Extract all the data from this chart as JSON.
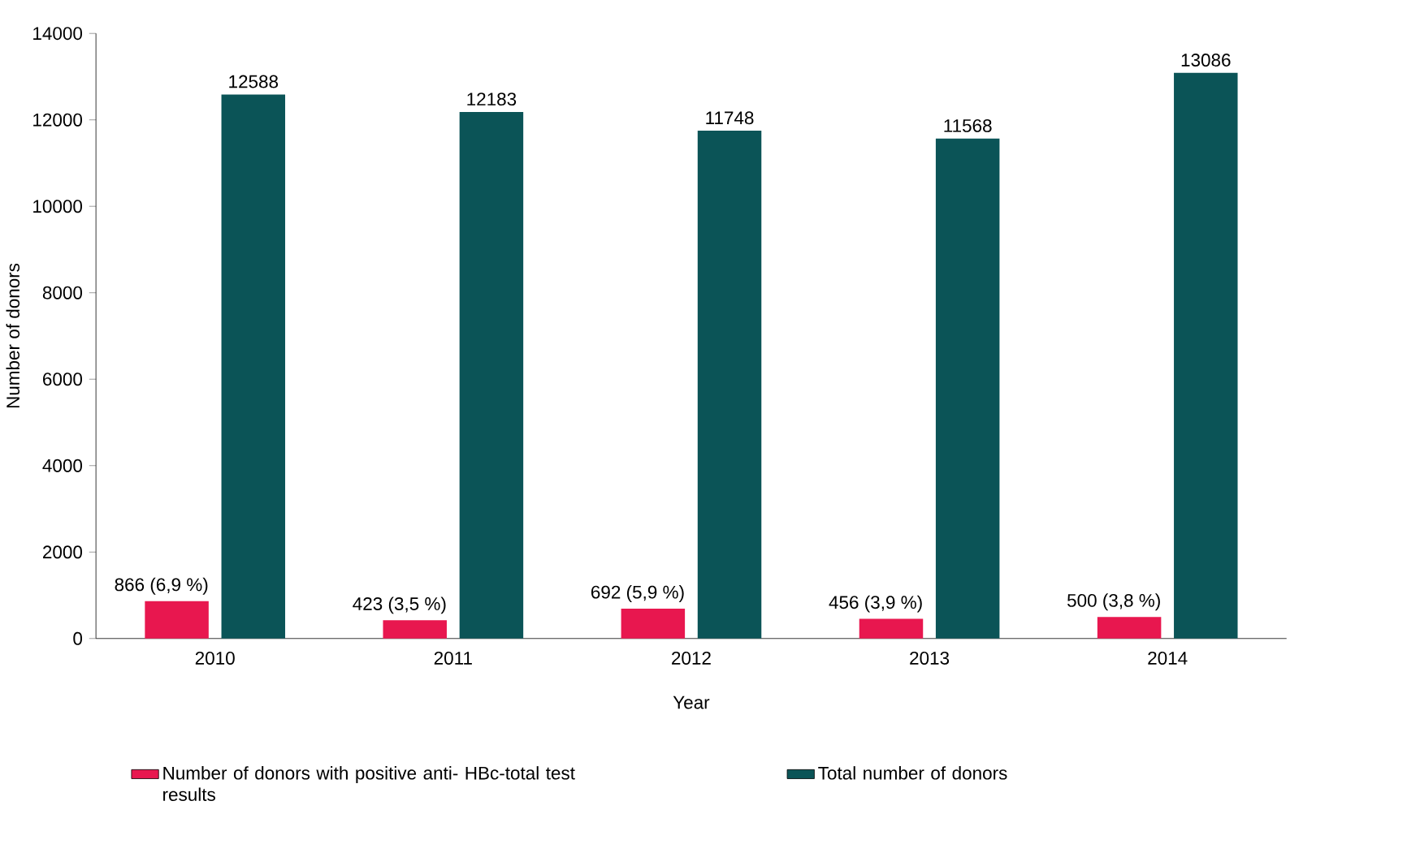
{
  "chart_data": {
    "type": "bar",
    "xlabel": "Year",
    "ylabel": "Number of donors",
    "categories": [
      "2010",
      "2011",
      "2012",
      "2013",
      "2014"
    ],
    "series": [
      {
        "name": "Number of donors with positive anti- HBc-total test results",
        "color": "#e8174f",
        "values": [
          866,
          423,
          692,
          456,
          500
        ],
        "value_labels": [
          "866 (6,9 %)",
          "423 (3,5 %)",
          "692 (5,9 %)",
          "456 (3,9 %)",
          "500 (3,8 %)"
        ]
      },
      {
        "name": "Total number of donors",
        "color": "#0b5457",
        "values": [
          12588,
          12183,
          11748,
          11568,
          13086
        ]
      }
    ],
    "ylim": [
      0,
      14000
    ],
    "yticks": [
      0,
      2000,
      4000,
      6000,
      8000,
      10000,
      12000,
      14000
    ],
    "data_labels": true,
    "legend": "bottom",
    "grid": false
  }
}
